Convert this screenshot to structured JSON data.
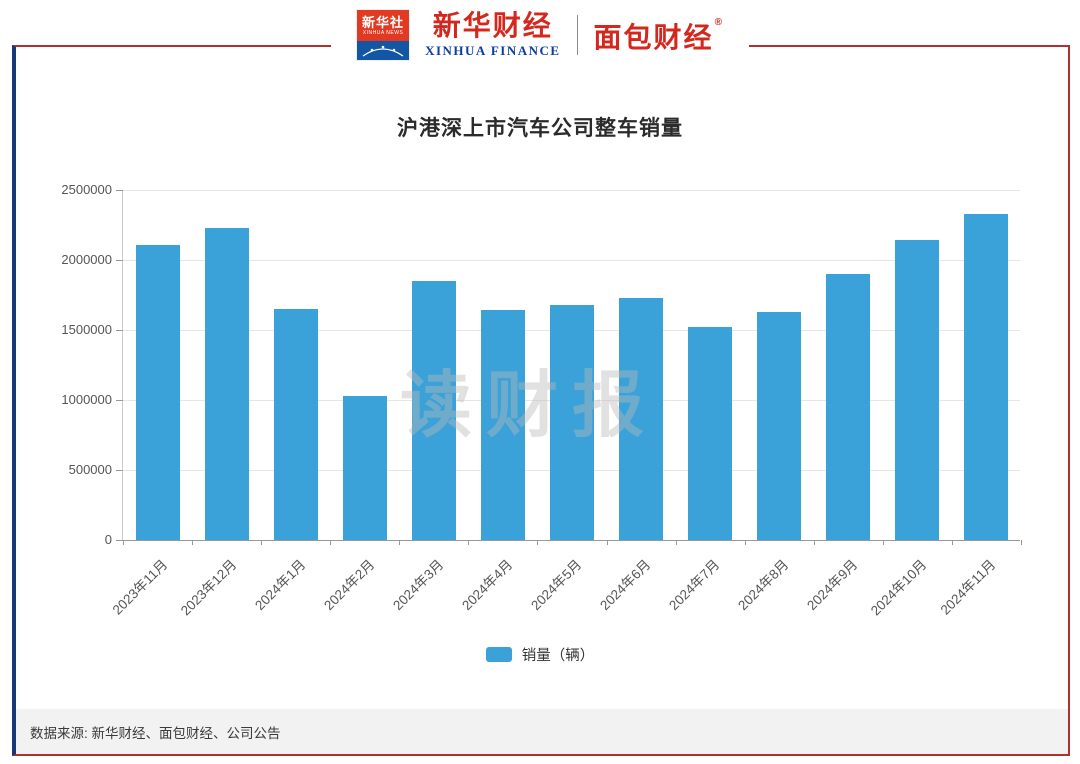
{
  "header": {
    "xinhua_news_logo": {
      "line1": "新华社",
      "line2": "XINHUA NEWS"
    },
    "xinhua_finance": {
      "cn": "新华财经",
      "en": "XINHUA FINANCE"
    },
    "bread_finance": {
      "cn": "面包财经",
      "reg": "®"
    }
  },
  "chart_data": {
    "type": "bar",
    "title": "沪港深上市汽车公司整车销量",
    "categories": [
      "2023年11月",
      "2023年12月",
      "2024年1月",
      "2024年2月",
      "2024年3月",
      "2024年4月",
      "2024年5月",
      "2024年6月",
      "2024年7月",
      "2024年8月",
      "2024年9月",
      "2024年10月",
      "2024年11月"
    ],
    "values": [
      2110000,
      2230000,
      1650000,
      1030000,
      1850000,
      1640000,
      1680000,
      1730000,
      1520000,
      1630000,
      1900000,
      2140000,
      2330000
    ],
    "series_name": "销量（辆）",
    "xlabel": "",
    "ylabel": "",
    "ylim": [
      0,
      2500000
    ],
    "yticks": [
      0,
      500000,
      1000000,
      1500000,
      2000000,
      2500000
    ],
    "grid": true,
    "legend_position": "bottom",
    "bar_color": "#3aa1d9"
  },
  "legend": {
    "label": "销量（辆）"
  },
  "watermark": "读财报",
  "footer": {
    "source": "数据来源: 新华财经、面包财经、公司公告"
  },
  "colors": {
    "bar": "#3aa1d9",
    "frame_red": "#b03030",
    "frame_blue": "#173a75",
    "brand_red": "#d4281e",
    "brand_blue": "#0d3d9e"
  }
}
